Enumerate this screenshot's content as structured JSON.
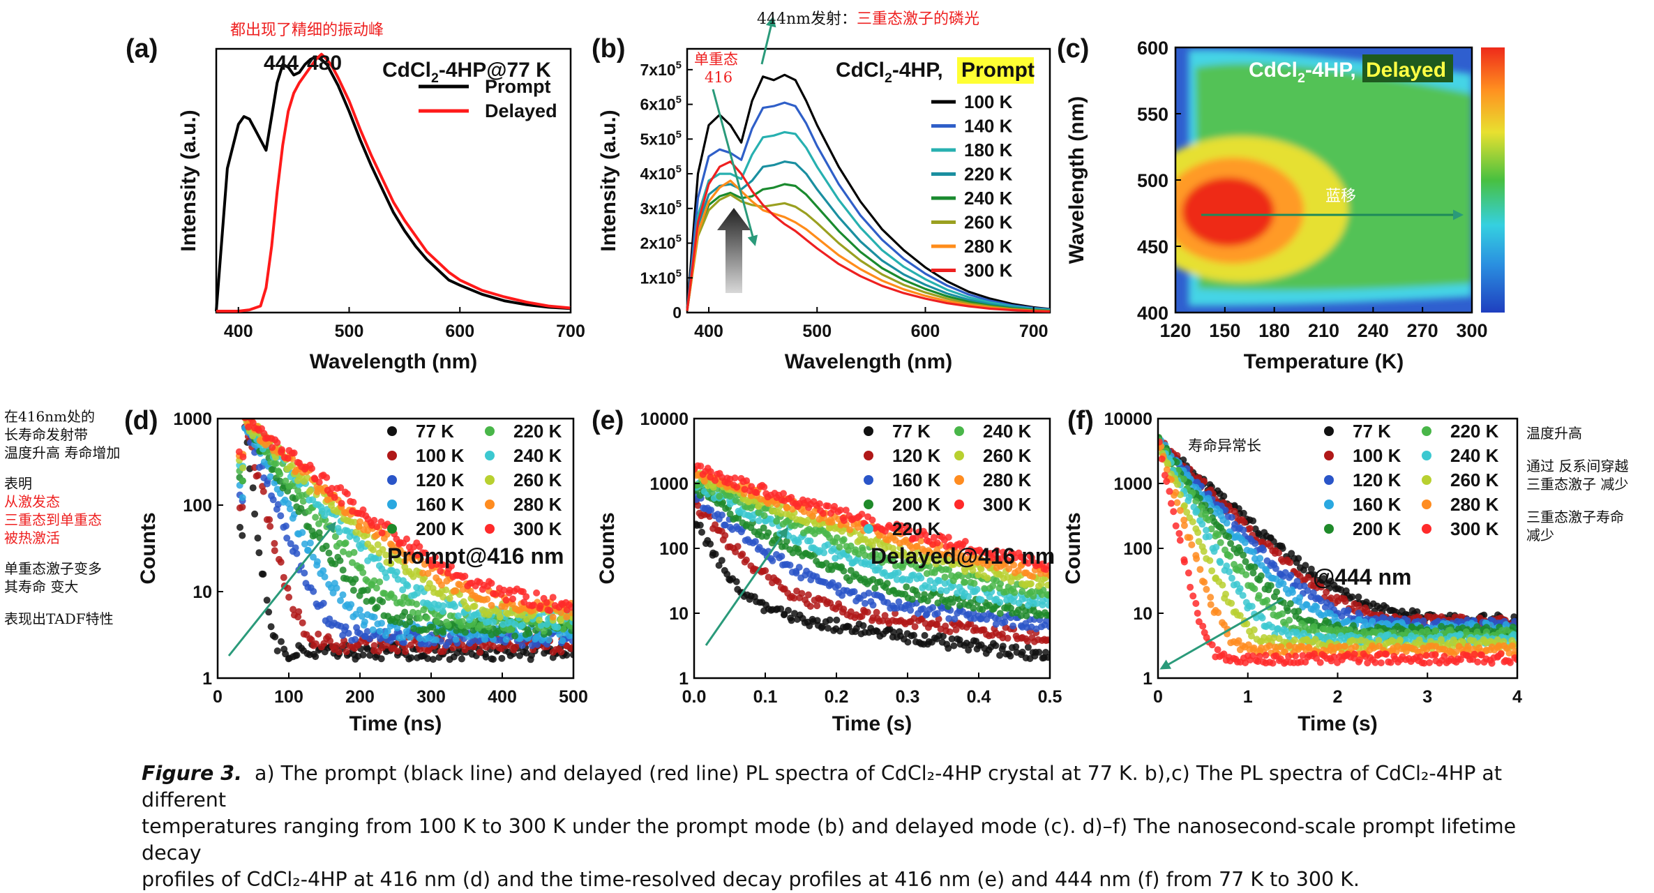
{
  "caption": {
    "label": "Figure 3.",
    "line1": "a) The prompt (black line) and delayed (red line) PL spectra of CdCl₂-4HP crystal at 77 K. b),c) The PL spectra of CdCl₂-4HP at different",
    "line2": "temperatures ranging from 100 K to 300 K under the prompt mode (b) and delayed mode (c). d)–f) The nanosecond-scale prompt lifetime decay",
    "line3": "profiles of CdCl₂-4HP at 416 nm (d) and the time-resolved decay profiles at 416 nm (e) and 444 nm (f) from 77 K to 300 K."
  },
  "annotations": {
    "a_top": "都出现了精细的振动峰",
    "b_top_prefix": "444nm发射：",
    "b_top_red": "三重态激子的磷光",
    "b_singlet_1": "单重态",
    "b_singlet_2": "416",
    "c_blueshift": "蓝移",
    "left_notes": [
      "在416nm处的",
      "长寿命发射带",
      "温度升高 寿命增加",
      "表明",
      "从激发态",
      "三重态到单重态",
      "被热激活",
      "单重态激子变多",
      "其寿命 变大",
      "表现出TADF特性"
    ],
    "f_long_life": "寿命异常长",
    "right_notes": [
      "温度升高",
      "通过 反系间穿越",
      "三重态激子 减少",
      "三重态激子寿命",
      "减少"
    ]
  },
  "chart_data": [
    {
      "panel": "(a)",
      "type": "line",
      "title_pre": "CdCl",
      "title_sub": "2",
      "title_post": "-4HP@77 K",
      "xlabel": "Wavelength (nm)",
      "ylabel": "Intensity (a.u.)",
      "xlim": [
        380,
        700
      ],
      "xticks": [
        400,
        500,
        600,
        700
      ],
      "peak_labels": [
        "444",
        "480"
      ],
      "series": [
        {
          "name": "Prompt",
          "color": "#000000",
          "x": [
            380,
            390,
            400,
            405,
            410,
            415,
            420,
            425,
            430,
            435,
            440,
            445,
            450,
            455,
            460,
            465,
            470,
            475,
            480,
            490,
            500,
            510,
            520,
            530,
            540,
            550,
            560,
            570,
            580,
            590,
            600,
            620,
            640,
            660,
            680,
            700
          ],
          "y": [
            0.0,
            0.55,
            0.72,
            0.75,
            0.74,
            0.7,
            0.66,
            0.62,
            0.75,
            0.88,
            0.95,
            0.94,
            0.91,
            0.92,
            0.95,
            0.97,
            0.98,
            0.97,
            0.95,
            0.87,
            0.77,
            0.66,
            0.56,
            0.47,
            0.38,
            0.31,
            0.25,
            0.2,
            0.16,
            0.12,
            0.1,
            0.065,
            0.04,
            0.025,
            0.015,
            0.01
          ]
        },
        {
          "name": "Delayed",
          "color": "#ff1a1a",
          "x": [
            380,
            400,
            410,
            420,
            425,
            430,
            435,
            440,
            445,
            450,
            455,
            460,
            465,
            470,
            475,
            480,
            485,
            490,
            500,
            510,
            520,
            530,
            540,
            550,
            560,
            570,
            580,
            590,
            600,
            620,
            640,
            660,
            680,
            700
          ],
          "y": [
            0.0,
            0.0,
            0.005,
            0.02,
            0.09,
            0.25,
            0.46,
            0.64,
            0.77,
            0.84,
            0.88,
            0.91,
            0.94,
            0.97,
            0.99,
            0.97,
            0.94,
            0.9,
            0.81,
            0.7,
            0.6,
            0.51,
            0.42,
            0.35,
            0.29,
            0.23,
            0.19,
            0.15,
            0.12,
            0.08,
            0.055,
            0.035,
            0.02,
            0.012
          ]
        }
      ]
    },
    {
      "panel": "(b)",
      "type": "line",
      "title_pre": "CdCl",
      "title_sub": "2",
      "title_post": "-4HP, ",
      "title_highlight": "Prompt",
      "xlabel": "Wavelength (nm)",
      "ylabel": "Intensity (a.u.)",
      "xlim": [
        380,
        715
      ],
      "ylim": [
        0,
        760000
      ],
      "xticks": [
        400,
        500,
        600,
        700
      ],
      "ytick_labels": [
        {
          "v": 0,
          "m": "0",
          "e": ""
        },
        {
          "v": 100000,
          "m": "1x10",
          "e": "5"
        },
        {
          "v": 200000,
          "m": "2x10",
          "e": "5"
        },
        {
          "v": 300000,
          "m": "3x10",
          "e": "5"
        },
        {
          "v": 400000,
          "m": "4x10",
          "e": "5"
        },
        {
          "v": 500000,
          "m": "5x10",
          "e": "5"
        },
        {
          "v": 600000,
          "m": "6x10",
          "e": "5"
        },
        {
          "v": 700000,
          "m": "7x10",
          "e": "5"
        }
      ],
      "x": [
        380,
        390,
        400,
        410,
        420,
        430,
        440,
        450,
        460,
        470,
        480,
        490,
        500,
        520,
        540,
        560,
        580,
        600,
        620,
        640,
        660,
        680,
        700,
        715
      ],
      "series": [
        {
          "name": "100 K",
          "color": "#000000",
          "y": [
            5000,
            400000,
            540000,
            570000,
            540000,
            490000,
            610000,
            680000,
            670000,
            685000,
            670000,
            610000,
            540000,
            420000,
            320000,
            240000,
            180000,
            130000,
            90000,
            60000,
            40000,
            25000,
            15000,
            10000
          ]
        },
        {
          "name": "140 K",
          "color": "#2f5fc8",
          "y": [
            5000,
            330000,
            450000,
            470000,
            460000,
            440000,
            530000,
            590000,
            595000,
            605000,
            595000,
            545000,
            480000,
            370000,
            280000,
            210000,
            155000,
            112000,
            78000,
            52000,
            34000,
            21000,
            13000,
            9000
          ]
        },
        {
          "name": "180 K",
          "color": "#27b0b0",
          "y": [
            5000,
            280000,
            380000,
            400000,
            400000,
            385000,
            455000,
            505000,
            510000,
            520000,
            515000,
            475000,
            420000,
            325000,
            245000,
            180000,
            132000,
            96000,
            66000,
            44000,
            29000,
            18000,
            11000,
            8000
          ]
        },
        {
          "name": "220 K",
          "color": "#1a8fa0",
          "y": [
            5000,
            250000,
            340000,
            365000,
            370000,
            355000,
            380000,
            420000,
            425000,
            435000,
            430000,
            400000,
            355000,
            275000,
            205000,
            150000,
            110000,
            80000,
            55000,
            37000,
            24000,
            15000,
            9000,
            6000
          ]
        },
        {
          "name": "240 K",
          "color": "#1a8a2e",
          "y": [
            5000,
            230000,
            310000,
            335000,
            345000,
            330000,
            335000,
            355000,
            360000,
            370000,
            365000,
            340000,
            305000,
            235000,
            175000,
            128000,
            94000,
            68000,
            47000,
            31000,
            20000,
            12000,
            7500,
            5000
          ]
        },
        {
          "name": "260 K",
          "color": "#9aa020",
          "y": [
            5000,
            220000,
            295000,
            325000,
            340000,
            320000,
            310000,
            305000,
            310000,
            315000,
            305000,
            285000,
            258000,
            200000,
            150000,
            110000,
            80000,
            58000,
            40000,
            26000,
            17000,
            10000,
            6000,
            4000
          ]
        },
        {
          "name": "280 K",
          "color": "#ff8c1a",
          "y": [
            5000,
            230000,
            320000,
            360000,
            380000,
            350000,
            320000,
            295000,
            285000,
            275000,
            260000,
            240000,
            215000,
            165000,
            125000,
            92000,
            67000,
            48000,
            33000,
            22000,
            14000,
            8500,
            5000,
            3500
          ]
        },
        {
          "name": "300 K",
          "color": "#ee2020",
          "y": [
            5000,
            260000,
            370000,
            420000,
            435000,
            400000,
            350000,
            310000,
            280000,
            255000,
            235000,
            210000,
            185000,
            140000,
            105000,
            77000,
            56000,
            40000,
            27000,
            18000,
            11000,
            7000,
            4000,
            3000
          ]
        }
      ]
    },
    {
      "panel": "(c)",
      "type": "heatmap",
      "title_pre": "CdCl",
      "title_sub": "2",
      "title_post": "-4HP, ",
      "title_highlight": "Delayed",
      "xlabel": "Temperature (K)",
      "ylabel": "Wavelength (nm)",
      "xlim": [
        120,
        300
      ],
      "ylim": [
        400,
        600
      ],
      "xticks": [
        120,
        150,
        180,
        210,
        240,
        270,
        300
      ],
      "yticks": [
        400,
        450,
        500,
        550,
        600
      ],
      "peak": {
        "temperature": 150,
        "wavelength": 475
      }
    },
    {
      "panel": "(d)",
      "type": "scatter",
      "annotation": "Prompt@416 nm",
      "xlabel": "Time (ns)",
      "ylabel": "Counts",
      "xlim": [
        0,
        500
      ],
      "ylim": [
        1,
        1000
      ],
      "xticks": [
        0,
        100,
        200,
        300,
        400,
        500
      ],
      "yticks": [
        1,
        10,
        100,
        1000
      ],
      "legend": [
        {
          "name": "77 K",
          "color": "#111111"
        },
        {
          "name": "220 K",
          "color": "#49b649"
        },
        {
          "name": "100 K",
          "color": "#b01818"
        },
        {
          "name": "240 K",
          "color": "#3cc8d0"
        },
        {
          "name": "120 K",
          "color": "#2a55c8"
        },
        {
          "name": "260 K",
          "color": "#b8d030"
        },
        {
          "name": "160 K",
          "color": "#2aa8e0"
        },
        {
          "name": "280 K",
          "color": "#ff8c20"
        },
        {
          "name": "200 K",
          "color": "#1f8a2a"
        },
        {
          "name": "300 K",
          "color": "#ff2a2a"
        }
      ]
    },
    {
      "panel": "(e)",
      "type": "scatter",
      "annotation": "Delayed@416 nm",
      "xlabel": "Time (s)",
      "ylabel": "Counts",
      "xlim": [
        0,
        0.5
      ],
      "ylim": [
        1,
        10000
      ],
      "xticks": [
        0.0,
        0.1,
        0.2,
        0.3,
        0.4,
        0.5
      ],
      "yticks": [
        1,
        10,
        100,
        1000,
        10000
      ],
      "legend": [
        {
          "name": "77 K",
          "color": "#111111"
        },
        {
          "name": "240 K",
          "color": "#49b649"
        },
        {
          "name": "120 K",
          "color": "#b01818"
        },
        {
          "name": "260 K",
          "color": "#b8d030"
        },
        {
          "name": "160 K",
          "color": "#2a55c8"
        },
        {
          "name": "280 K",
          "color": "#ff8c20"
        },
        {
          "name": "200 K",
          "color": "#1f8a2a"
        },
        {
          "name": "300 K",
          "color": "#ff2a2a"
        },
        {
          "name": "220 K",
          "color": "#3cc8d0"
        }
      ]
    },
    {
      "panel": "(f)",
      "type": "scatter",
      "annotation": "@444 nm",
      "xlabel": "Time (s)",
      "ylabel": "Counts",
      "xlim": [
        0,
        4
      ],
      "ylim": [
        1,
        10000
      ],
      "xticks": [
        0,
        1,
        2,
        3,
        4
      ],
      "yticks": [
        1,
        10,
        100,
        1000,
        10000
      ],
      "legend": [
        {
          "name": "77 K",
          "color": "#111111"
        },
        {
          "name": "220 K",
          "color": "#49b649"
        },
        {
          "name": "100 K",
          "color": "#b01818"
        },
        {
          "name": "240 K",
          "color": "#3cc8d0"
        },
        {
          "name": "120 K",
          "color": "#2a55c8"
        },
        {
          "name": "260 K",
          "color": "#b8d030"
        },
        {
          "name": "160 K",
          "color": "#2aa8e0"
        },
        {
          "name": "280 K",
          "color": "#ff8c20"
        },
        {
          "name": "200 K",
          "color": "#1f8a2a"
        },
        {
          "name": "300 K",
          "color": "#ff2a2a"
        }
      ]
    }
  ]
}
